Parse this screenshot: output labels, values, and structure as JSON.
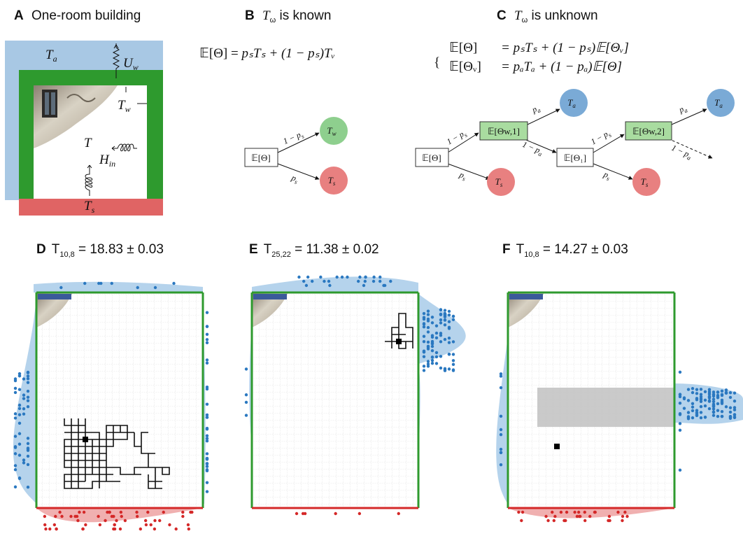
{
  "panels": {
    "A": {
      "letter": "A",
      "title": "One-room building",
      "labels": {
        "ta": "T",
        "ta_sub": "a",
        "uw": "U",
        "uw_sub": "w",
        "tw": "T",
        "tw_sub": "w",
        "t": "T",
        "hin": "H",
        "hin_sub": "in",
        "ts": "T",
        "ts_sub": "s"
      }
    },
    "B": {
      "letter": "B",
      "title_var": "T",
      "title_sub": "ω",
      "title_rest": " is known",
      "equation": "ᵓ",
      "eq_lhs": "𝔼[Θ] = ",
      "eq_rhs": "pₛTₛ + (1 − pₛ)Tᵥ",
      "nodes": {
        "root": "𝔼[Θ]",
        "tw": "T",
        "tw_sub": "w",
        "ts": "T",
        "ts_sub": "s"
      },
      "edges": {
        "to_tw": "1 − p",
        "to_tw_sub": "s",
        "to_ts": "p",
        "to_ts_sub": "s"
      }
    },
    "C": {
      "letter": "C",
      "title_var": "T",
      "title_sub": "ω",
      "title_rest": " is unknown",
      "eq1_lhs": "𝔼[Θ]",
      "eq1_rhs": "= pₛTₛ + (1 − pₛ)𝔼[Θᵥ]",
      "eq2_lhs": "𝔼[Θᵥ]",
      "eq2_rhs": "= pₐTₐ + (1 − pₐ)𝔼[Θ]",
      "nodes": {
        "root": "𝔼[Θ]",
        "w1": "𝔼[Θw,1]",
        "t1": "𝔼[Θ₁]",
        "w2": "𝔼[Θw,2]",
        "ta": "T",
        "ta_sub": "a",
        "ts": "T",
        "ts_sub": "s"
      },
      "edges": {
        "pa": "p",
        "pa_sub": "a",
        "ps": "p",
        "ps_sub": "s",
        "one_m_ps": "1 − p",
        "one_m_pa": "1 − p"
      }
    },
    "D": {
      "letter": "D",
      "value_label": "T",
      "value_sub": "10,8",
      "value_rest": " = 18.83 ± 0.03"
    },
    "E": {
      "letter": "E",
      "value_label": "T",
      "value_sub": "25,22",
      "value_rest": " = 11.38 ± 0.02"
    },
    "F": {
      "letter": "F",
      "value_label": "T",
      "value_sub": "10,8",
      "value_rest": " = 14.27 ± 0.03"
    }
  },
  "colors": {
    "air": "#a8c8e4",
    "wall": "#2e9a2e",
    "soil": "#e06464",
    "node_blue": "#7aaad6",
    "node_green": "#8ecf8e",
    "node_red": "#e88080",
    "box_green": "#a9dca0",
    "dot_blue": "#2a78c0",
    "dot_red": "#d42828",
    "kde_blue": "#b5d3ec",
    "kde_red": "#f0b0b0",
    "grid": "#bdbdbd",
    "walk": "#111111"
  },
  "icons": [
    "heat-coil-icon",
    "window-photo-icon",
    "resistor-icon"
  ]
}
